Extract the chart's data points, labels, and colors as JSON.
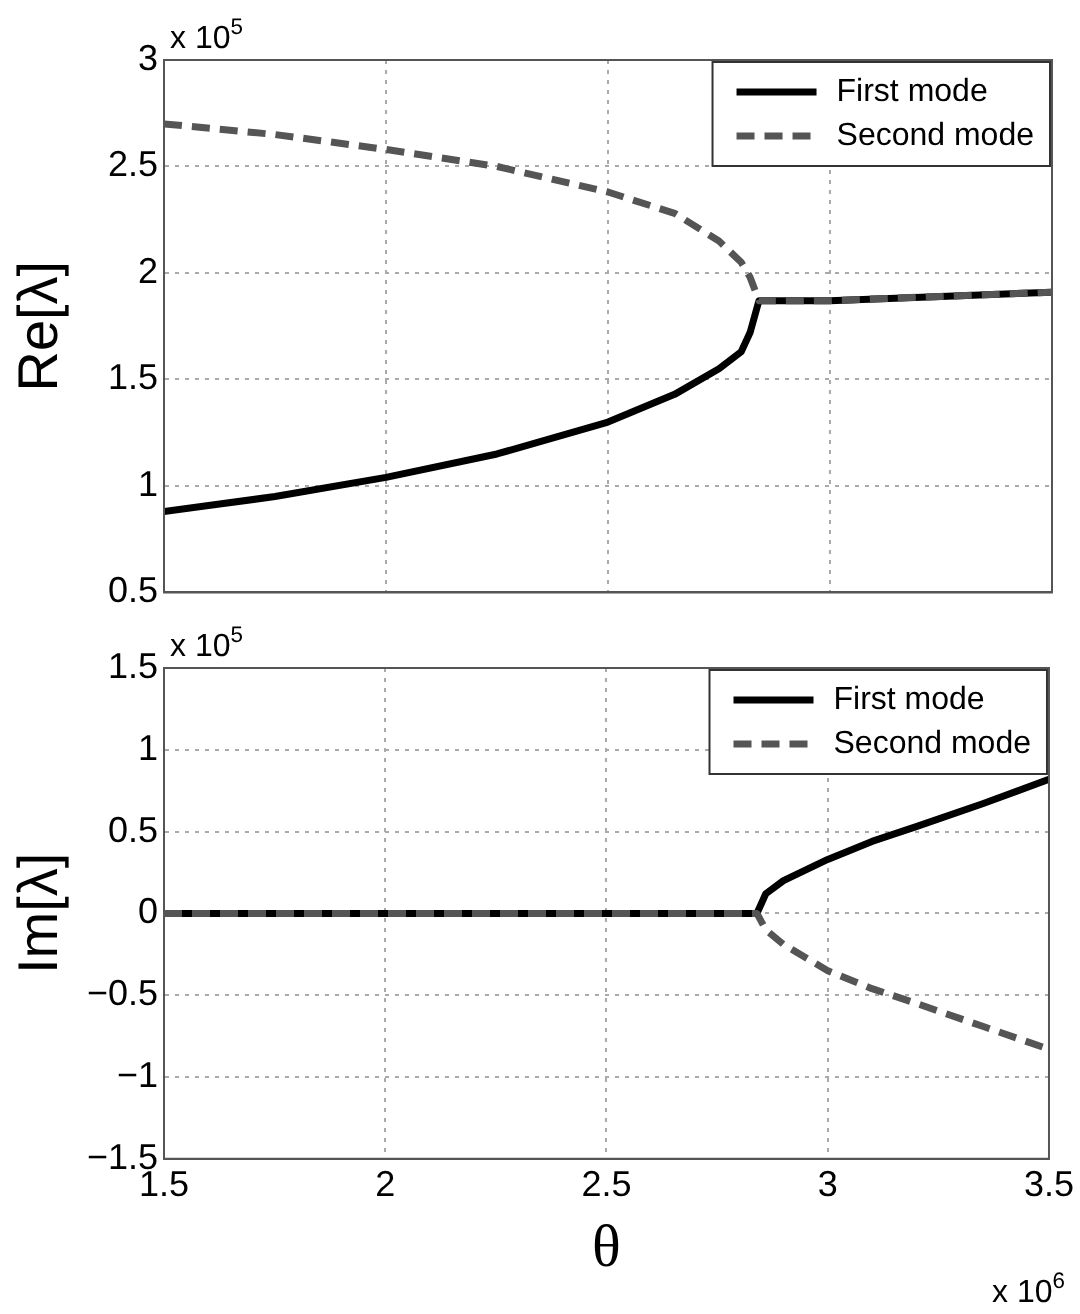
{
  "chart_data": [
    {
      "type": "line",
      "ylabel": "Re[λ]",
      "annotations": [
        "x 10$^{5}$"
      ],
      "xlim": [
        1.5,
        3.5
      ],
      "xticks": [
        1.5,
        2,
        2.5,
        3,
        3.5
      ],
      "ylim": [
        0.5,
        3
      ],
      "yticks": [
        0.5,
        1,
        1.5,
        2,
        2.5,
        3
      ],
      "tick_labels": "y",
      "grid": true,
      "legend": "top right",
      "series": [
        {
          "name": "First mode",
          "color": "#000000",
          "line_style": "solid",
          "x": [
            1.5,
            1.75,
            2.0,
            2.25,
            2.5,
            2.65,
            2.75,
            2.8,
            2.82,
            2.84,
            3.0,
            3.25,
            3.5
          ],
          "values": [
            0.88,
            0.95,
            1.04,
            1.15,
            1.3,
            1.43,
            1.55,
            1.63,
            1.72,
            1.87,
            1.87,
            1.89,
            1.91
          ]
        },
        {
          "name": "Second mode",
          "color": "#555555",
          "line_style": "dashed",
          "x": [
            1.5,
            1.75,
            2.0,
            2.25,
            2.5,
            2.65,
            2.75,
            2.8,
            2.82,
            2.84,
            3.0,
            3.25,
            3.5
          ],
          "values": [
            2.7,
            2.65,
            2.58,
            2.5,
            2.38,
            2.28,
            2.15,
            2.05,
            1.98,
            1.87,
            1.87,
            1.89,
            1.91
          ]
        }
      ]
    },
    {
      "type": "line",
      "xlabel": "θ",
      "ylabel": "Im[λ]",
      "annotations": [
        "x 10$^{5}$",
        "x 10$^{6}$"
      ],
      "xlim": [
        1.5,
        3.5
      ],
      "xticks": [
        1.5,
        2,
        2.5,
        3,
        3.5
      ],
      "ylim": [
        -1.5,
        1.5
      ],
      "yticks": [
        -1.5,
        -1,
        -0.5,
        0,
        0.5,
        1,
        1.5
      ],
      "grid": true,
      "legend": "top right",
      "series": [
        {
          "name": "First mode",
          "color": "#000000",
          "line_style": "solid",
          "x": [
            1.5,
            2.0,
            2.5,
            2.84,
            2.86,
            2.9,
            3.0,
            3.1,
            3.2,
            3.35,
            3.5
          ],
          "values": [
            0,
            0,
            0,
            0,
            0.12,
            0.2,
            0.33,
            0.44,
            0.53,
            0.67,
            0.82
          ]
        },
        {
          "name": "Second mode",
          "color": "#555555",
          "line_style": "dashed",
          "x": [
            1.5,
            2.0,
            2.5,
            2.84,
            2.86,
            2.9,
            3.0,
            3.1,
            3.2,
            3.35,
            3.5
          ],
          "values": [
            0,
            0,
            0,
            0,
            -0.1,
            -0.19,
            -0.35,
            -0.46,
            -0.55,
            -0.69,
            -0.83
          ]
        }
      ]
    }
  ]
}
